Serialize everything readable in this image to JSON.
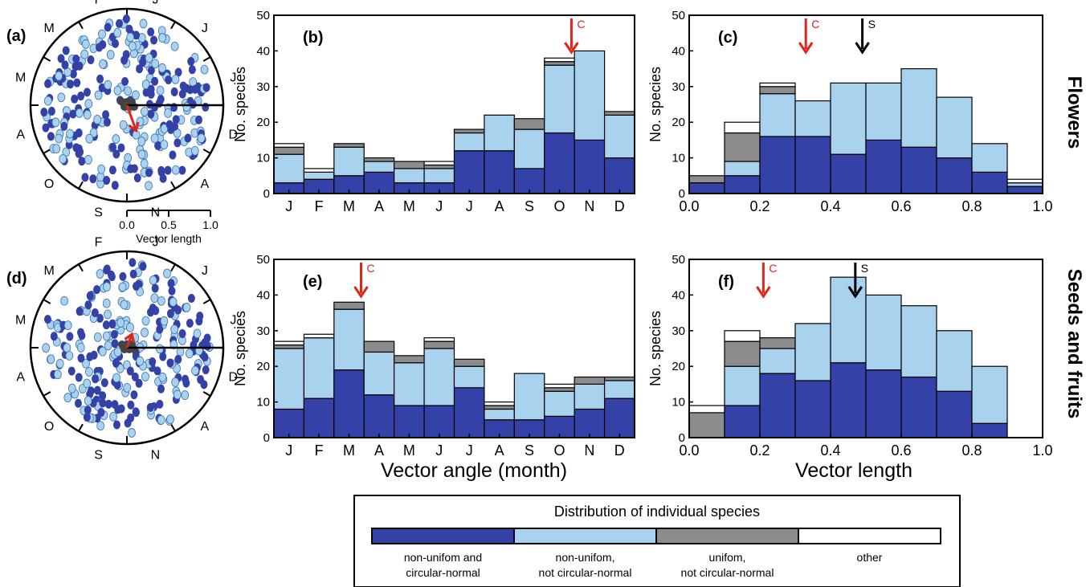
{
  "colors": {
    "dark_blue": "#3442a8",
    "light_blue": "#a9d2ef",
    "gray": "#8c8c8c",
    "white": "#ffffff",
    "red": "#e0251b",
    "black": "#000000"
  },
  "row_labels": {
    "top": "Flowers",
    "bottom": "Seeds and fruits"
  },
  "common": {
    "ylabel": "No. species",
    "xlabel_month": "Vector angle (month)",
    "xlabel_length": "Vector length",
    "month_ticks": [
      "J",
      "F",
      "M",
      "A",
      "M",
      "J",
      "J",
      "A",
      "S",
      "O",
      "N",
      "D"
    ],
    "length_ticks": [
      "0.0",
      "0.2",
      "0.4",
      "0.6",
      "0.8",
      "1.0"
    ],
    "y_ticks": [
      "0",
      "10",
      "20",
      "30",
      "40",
      "50"
    ]
  },
  "circular_plots": [
    {
      "panel_label": "(a)",
      "month_labels": [
        "A",
        "M",
        "M",
        "F",
        "J",
        "J",
        "J",
        "D",
        "A",
        "N",
        "S",
        "O"
      ],
      "scale_ticks": [
        "0.0",
        "0.5",
        "1.0"
      ],
      "scale_label": "Vector length",
      "mean_vector_months_angle_deg": 160,
      "mean_vector_length": 0.28
    },
    {
      "panel_label": "(d)",
      "month_labels": [
        "A",
        "M",
        "M",
        "F",
        "J",
        "J",
        "J",
        "D",
        "A",
        "N",
        "S",
        "O"
      ],
      "mean_vector_months_angle_deg": 20,
      "mean_vector_length": 0.15
    }
  ],
  "legend": {
    "title": "Distribution of individual species",
    "items": [
      {
        "label_line1": "non-unifom and",
        "label_line2": "circular-normal",
        "color": "#3442a8"
      },
      {
        "label_line1": "non-unifom,",
        "label_line2": "not circular-normal",
        "color": "#a9d2ef"
      },
      {
        "label_line1": "unifom,",
        "label_line2": "not circular-normal",
        "color": "#8c8c8c"
      },
      {
        "label_line1": "other",
        "label_line2": "",
        "color": "#ffffff"
      }
    ]
  },
  "chart_data": [
    {
      "panel": "(b)",
      "type": "bar",
      "stacked": true,
      "categories": [
        "J",
        "F",
        "M",
        "A",
        "M",
        "J",
        "J",
        "A",
        "S",
        "O",
        "N",
        "D"
      ],
      "ylabel": "No. species",
      "ylim": [
        0,
        50
      ],
      "series": [
        {
          "name": "non-unifom and circular-normal",
          "values": [
            3,
            4,
            5,
            6,
            3,
            3,
            12,
            12,
            7,
            17,
            15,
            10
          ]
        },
        {
          "name": "non-unifom, not circular-normal",
          "values": [
            8,
            2,
            8,
            3,
            4,
            4,
            5,
            10,
            11,
            19,
            25,
            12
          ]
        },
        {
          "name": "unifom, not circular-normal",
          "values": [
            2,
            0,
            1,
            1,
            2,
            1,
            1,
            0,
            3,
            1,
            0,
            1
          ]
        },
        {
          "name": "other",
          "values": [
            1,
            1,
            0,
            0,
            0,
            1,
            0,
            0,
            0,
            1,
            0,
            0
          ]
        }
      ],
      "annotations": [
        {
          "text": "C",
          "color": "#e0251b",
          "x_index": 9.4
        }
      ]
    },
    {
      "panel": "(c)",
      "type": "bar",
      "stacked": true,
      "x_bins": [
        0.0,
        0.1,
        0.2,
        0.3,
        0.4,
        0.5,
        0.6,
        0.7,
        0.8,
        0.9,
        1.0
      ],
      "ylabel": "No. species",
      "xlim": [
        0,
        1
      ],
      "ylim": [
        0,
        50
      ],
      "series": [
        {
          "name": "non-unifom and circular-normal",
          "values": [
            3,
            5,
            16,
            16,
            11,
            15,
            13,
            10,
            6,
            2
          ]
        },
        {
          "name": "non-unifom, not circular-normal",
          "values": [
            0,
            4,
            12,
            10,
            20,
            16,
            22,
            17,
            8,
            1
          ]
        },
        {
          "name": "unifom, not circular-normal",
          "values": [
            2,
            8,
            2,
            0,
            0,
            0,
            0,
            0,
            0,
            0
          ]
        },
        {
          "name": "other",
          "values": [
            0,
            3,
            1,
            0,
            0,
            0,
            0,
            0,
            0,
            1
          ]
        }
      ],
      "annotations": [
        {
          "text": "C",
          "color": "#e0251b",
          "x": 0.33
        },
        {
          "text": "S",
          "color": "#000000",
          "x": 0.49
        }
      ]
    },
    {
      "panel": "(e)",
      "type": "bar",
      "stacked": true,
      "categories": [
        "J",
        "F",
        "M",
        "A",
        "M",
        "J",
        "J",
        "A",
        "S",
        "O",
        "N",
        "D"
      ],
      "xlabel": "Vector angle (month)",
      "ylabel": "No. species",
      "ylim": [
        0,
        50
      ],
      "series": [
        {
          "name": "non-unifom and circular-normal",
          "values": [
            8,
            11,
            19,
            12,
            9,
            9,
            14,
            5,
            5,
            6,
            8,
            11
          ]
        },
        {
          "name": "non-unifom, not circular-normal",
          "values": [
            17,
            17,
            17,
            12,
            12,
            16,
            6,
            3,
            13,
            7,
            7,
            5
          ]
        },
        {
          "name": "unifom, not circular-normal",
          "values": [
            1,
            0,
            2,
            3,
            2,
            2,
            2,
            1,
            0,
            1,
            2,
            1
          ]
        },
        {
          "name": "other",
          "values": [
            1,
            1,
            0,
            0,
            0,
            1,
            0,
            1,
            0,
            1,
            0,
            0
          ]
        }
      ],
      "annotations": [
        {
          "text": "C",
          "color": "#e0251b",
          "x_index": 2.4
        }
      ]
    },
    {
      "panel": "(f)",
      "type": "bar",
      "stacked": true,
      "x_bins": [
        0.0,
        0.1,
        0.2,
        0.3,
        0.4,
        0.5,
        0.6,
        0.7,
        0.8,
        0.9,
        1.0
      ],
      "xlabel": "Vector length",
      "ylabel": "No. species",
      "xlim": [
        0,
        1
      ],
      "ylim": [
        0,
        50
      ],
      "series": [
        {
          "name": "non-unifom and circular-normal",
          "values": [
            0,
            9,
            18,
            16,
            21,
            19,
            17,
            13,
            4,
            0
          ]
        },
        {
          "name": "non-unifom, not circular-normal",
          "values": [
            0,
            11,
            7,
            16,
            24,
            21,
            20,
            17,
            16,
            0
          ]
        },
        {
          "name": "unifom, not circular-normal",
          "values": [
            7,
            7,
            3,
            0,
            0,
            0,
            0,
            0,
            0,
            0
          ]
        },
        {
          "name": "other",
          "values": [
            2,
            3,
            0,
            0,
            0,
            0,
            0,
            0,
            0,
            0
          ]
        }
      ],
      "annotations": [
        {
          "text": "C",
          "color": "#e0251b",
          "x": 0.21
        },
        {
          "text": "S",
          "color": "#000000",
          "x": 0.47
        }
      ]
    }
  ]
}
